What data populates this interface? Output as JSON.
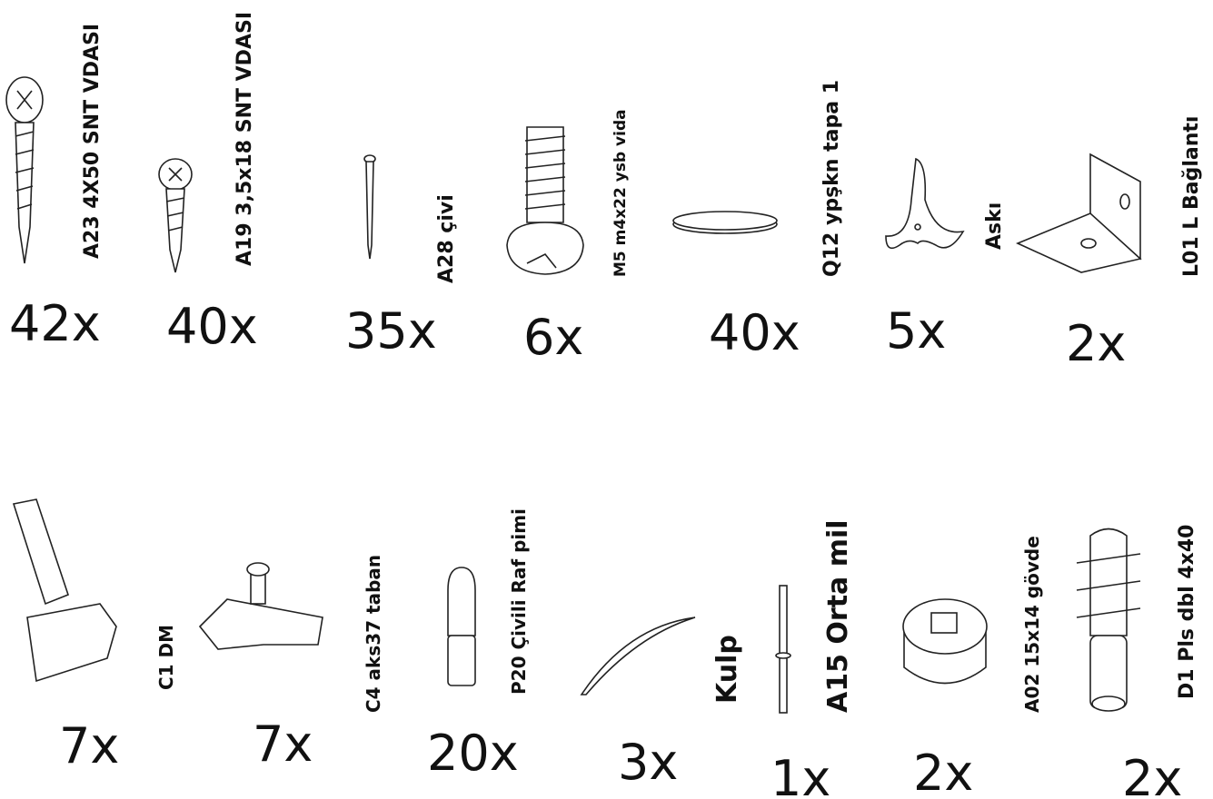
{
  "rows": [
    {
      "items": [
        {
          "label": "A23 4X50 SNT VDASI",
          "count": "42x"
        },
        {
          "label": "A19 3,5x18 SNT VDASI",
          "count": "40x"
        },
        {
          "label": "A28 çivi",
          "count": "35x"
        },
        {
          "label": "M5 m4x22 ysb vida",
          "count": "6x"
        },
        {
          "label": "Q12 ypşkn tapa 1",
          "count": "40x"
        },
        {
          "label": "Askı",
          "count": "5x"
        },
        {
          "label": "L01 L Bağlantı",
          "count": "2x"
        }
      ]
    },
    {
      "items": [
        {
          "label": "C1 DM",
          "count": "7x"
        },
        {
          "label": "C4 aks37 taban",
          "count": "7x"
        },
        {
          "label": "P20 Çivili Raf pimi",
          "count": "20x"
        },
        {
          "label": "Kulp",
          "count": "3x"
        },
        {
          "label": "A15 Orta mil",
          "count": "1x"
        },
        {
          "label": "A02 15x14 gövde",
          "count": "2x"
        },
        {
          "label": "D1  Pls dbl 4x40",
          "count": "2x"
        }
      ]
    }
  ]
}
